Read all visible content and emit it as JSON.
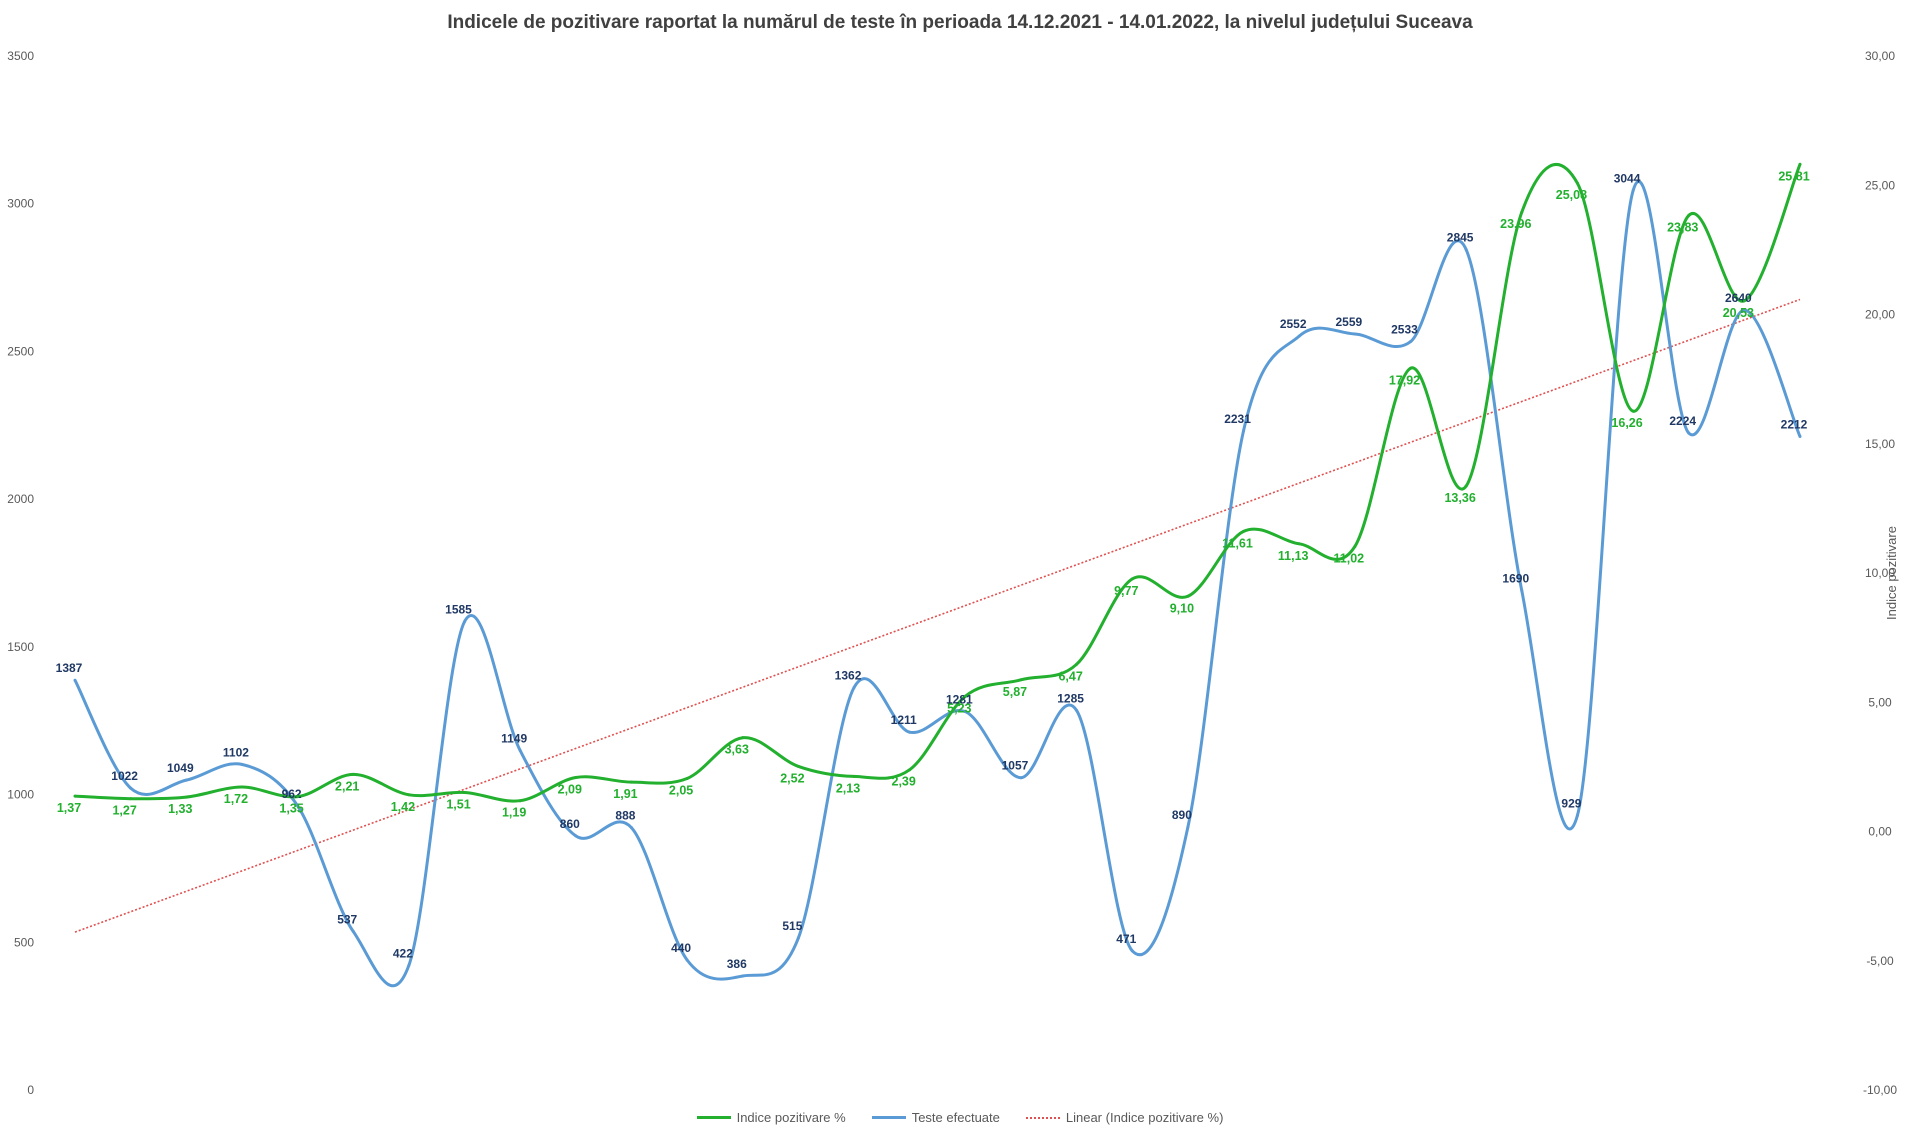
{
  "chart_data": {
    "type": "line",
    "title": "Indicele de pozitivare  raportat  la numărul  de teste în perioada  14.12.2021 - 14.01.2022, la nivelul județului  Suceava",
    "y_left": {
      "ticks": [
        "0",
        "500",
        "1000",
        "1500",
        "2000",
        "2500",
        "3000",
        "3500"
      ],
      "lim": [
        0,
        3500
      ]
    },
    "y_right": {
      "label": "Indice pozitivare",
      "ticks": [
        "-10,00",
        "-5,00",
        "0,00",
        "5,00",
        "10,00",
        "15,00",
        "20,00",
        "25,00",
        "30,00"
      ],
      "lim": [
        -10,
        30
      ]
    },
    "series": [
      {
        "name": "Indice pozitivare %",
        "axis": "right",
        "color": "#22b02e",
        "values": [
          1.37,
          1.27,
          1.33,
          1.72,
          1.35,
          2.21,
          1.42,
          1.51,
          1.19,
          2.09,
          1.91,
          2.05,
          3.63,
          2.52,
          2.13,
          2.39,
          5.23,
          5.87,
          6.47,
          9.77,
          9.1,
          11.61,
          11.13,
          11.02,
          17.92,
          13.36,
          23.96,
          25.08,
          16.26,
          23.83,
          20.53,
          25.81
        ],
        "labels": [
          "1,37",
          "1,27",
          "1,33",
          "1,72",
          "1,35",
          "2,21",
          "1,42",
          "1,51",
          "1,19",
          "2,09",
          "1,91",
          "2,05",
          "3,63",
          "2,52",
          "2,13",
          "2,39",
          "5,23",
          "5,87",
          "6,47",
          "9,77",
          "9,10",
          "11,61",
          "11,13",
          "11,02",
          "17,92",
          "13,36",
          "23,96",
          "25,08",
          "16,26",
          "23,83",
          "20,53",
          "25,81"
        ]
      },
      {
        "name": "Teste efectuate",
        "axis": "left",
        "color": "#5b9bd5",
        "values": [
          1387,
          1022,
          1049,
          1102,
          962,
          537,
          422,
          1585,
          1149,
          860,
          888,
          440,
          386,
          515,
          1362,
          1211,
          1281,
          1057,
          1285,
          471,
          890,
          2231,
          2552,
          2559,
          2533,
          2845,
          1690,
          929,
          3044,
          2224,
          2640,
          2212
        ],
        "labels": [
          "1387",
          "1022",
          "1049",
          "1102",
          "962",
          "537",
          "422",
          "1585",
          "1149",
          "860",
          "888",
          "440",
          "386",
          "515",
          "1362",
          "1211",
          "1281",
          "1057",
          "1285",
          "471",
          "890",
          "2231",
          "2552",
          "2559",
          "2533",
          "2845",
          "1690",
          "929",
          "3044",
          "2224",
          "2640",
          "2212"
        ]
      },
      {
        "name": "Linear (Indice pozitivare %)",
        "axis": "right",
        "color": "#e05050",
        "trendline": "linear",
        "of": "Indice pozitivare %"
      }
    ],
    "grid": false,
    "legend_position": "bottom"
  }
}
